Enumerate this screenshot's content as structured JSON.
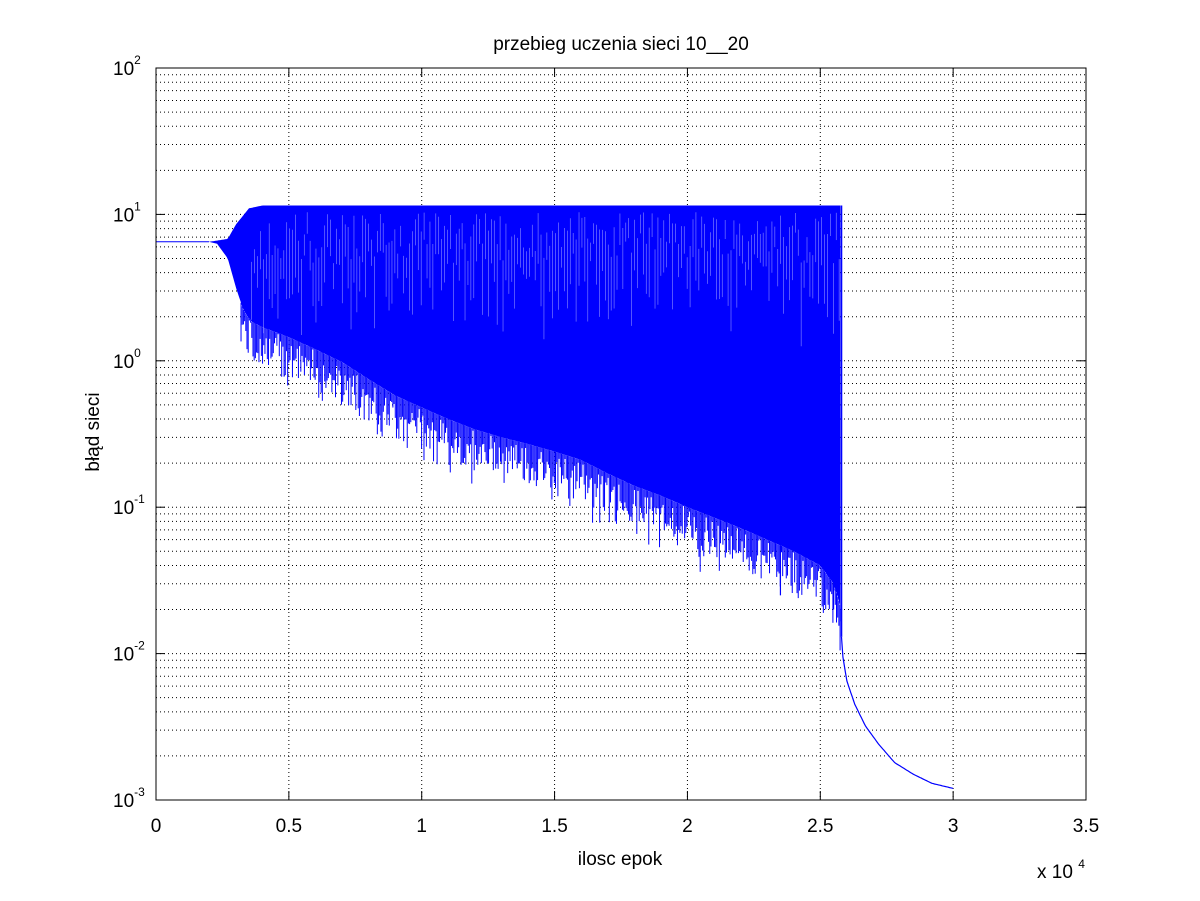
{
  "chart_data": {
    "type": "line",
    "title": "przebieg uczenia sieci 10__20",
    "xlabel": "ilosc epok",
    "ylabel": "błąd sieci",
    "x_scale_note": {
      "prefix": "x 10",
      "exponent": "4"
    },
    "xlim": [
      0,
      35000
    ],
    "ylim": [
      0.001,
      100
    ],
    "yscale": "log",
    "grid": true,
    "line_color": "#0000ff",
    "x_ticks": [
      "0",
      "0.5",
      "1",
      "1.5",
      "2",
      "2.5",
      "3",
      "3.5"
    ],
    "x_tick_values": [
      0,
      5000,
      10000,
      15000,
      20000,
      25000,
      30000,
      35000
    ],
    "y_ticks": [
      {
        "value": 0.001,
        "base": "10",
        "exp": "-3"
      },
      {
        "value": 0.01,
        "base": "10",
        "exp": "-2"
      },
      {
        "value": 0.1,
        "base": "10",
        "exp": "-1"
      },
      {
        "value": 1,
        "base": "10",
        "exp": "0"
      },
      {
        "value": 10,
        "base": "10",
        "exp": "1"
      },
      {
        "value": 100,
        "base": "10",
        "exp": "2"
      }
    ],
    "series": [
      {
        "lower_envelope": {
          "x": [
            0,
            2000,
            2300,
            2700,
            3000,
            3300,
            3600,
            4000,
            5000,
            6000,
            7000,
            8000,
            9000,
            10000,
            11000,
            12000,
            13000,
            14000,
            15000,
            16000,
            17000,
            18000,
            19000,
            20000,
            21000,
            22000,
            23000,
            24000,
            25000,
            25500,
            25800
          ],
          "y": [
            6.5,
            6.5,
            6.3,
            5.0,
            3.2,
            2.2,
            1.85,
            1.7,
            1.45,
            1.2,
            0.98,
            0.75,
            0.58,
            0.48,
            0.4,
            0.34,
            0.3,
            0.27,
            0.24,
            0.21,
            0.17,
            0.14,
            0.12,
            0.1,
            0.085,
            0.072,
            0.06,
            0.05,
            0.04,
            0.03,
            0.02
          ]
        },
        "upper_envelope": {
          "x": [
            2000,
            2700,
            3000,
            3500,
            4000,
            25800
          ],
          "y": [
            6.5,
            6.8,
            8.5,
            11.0,
            11.5,
            11.5
          ]
        },
        "decay_tail": {
          "x": [
            25800,
            25850,
            26000,
            26300,
            26700,
            27200,
            27800,
            28500,
            29200,
            30000
          ],
          "y": [
            0.013,
            0.0095,
            0.0065,
            0.0045,
            0.0032,
            0.0024,
            0.0018,
            0.0015,
            0.0013,
            0.0012
          ]
        },
        "dips": [
          {
            "x": 14250,
            "y": 0.6
          },
          {
            "x": 23500,
            "y": 0.025
          },
          {
            "x": 25500,
            "y": 0.02
          }
        ]
      }
    ]
  }
}
